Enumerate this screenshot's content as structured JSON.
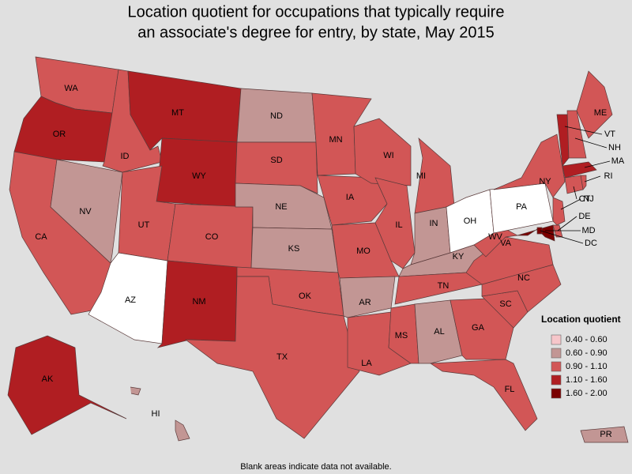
{
  "title": [
    "Location quotient for occupations that typically require",
    "an associate's degree for entry, by state, May 2015"
  ],
  "legend": {
    "title": "Location quotient",
    "items": [
      {
        "label": "0.40 - 0.60",
        "color": "#f6c6ca"
      },
      {
        "label": "0.60 - 0.90",
        "color": "#c29694"
      },
      {
        "label": "0.90 - 1.10",
        "color": "#d25656"
      },
      {
        "label": "1.10 - 1.60",
        "color": "#b01e22"
      },
      {
        "label": "1.60 - 2.00",
        "color": "#7a0000"
      }
    ]
  },
  "note": "Blank areas indicate data not available.",
  "states": [
    {
      "label": "WA",
      "color": "#d25656"
    },
    {
      "label": "OR",
      "color": "#b01e22"
    },
    {
      "label": "CA",
      "color": "#d25656"
    },
    {
      "label": "NV",
      "color": "#c29694"
    },
    {
      "label": "ID",
      "color": "#d25656"
    },
    {
      "label": "MT",
      "color": "#b01e22"
    },
    {
      "label": "WY",
      "color": "#b01e22"
    },
    {
      "label": "UT",
      "color": "#d25656"
    },
    {
      "label": "AZ",
      "color": null
    },
    {
      "label": "CO",
      "color": "#d25656"
    },
    {
      "label": "NM",
      "color": "#b01e22"
    },
    {
      "label": "ND",
      "color": "#c29694"
    },
    {
      "label": "SD",
      "color": "#d25656"
    },
    {
      "label": "NE",
      "color": "#c29694"
    },
    {
      "label": "KS",
      "color": "#c29694"
    },
    {
      "label": "OK",
      "color": "#d25656"
    },
    {
      "label": "TX",
      "color": "#d25656"
    },
    {
      "label": "MN",
      "color": "#d25656"
    },
    {
      "label": "IA",
      "color": "#d25656"
    },
    {
      "label": "MO",
      "color": "#d25656"
    },
    {
      "label": "AR",
      "color": "#c29694"
    },
    {
      "label": "LA",
      "color": "#d25656"
    },
    {
      "label": "WI",
      "color": "#d25656"
    },
    {
      "label": "IL",
      "color": "#d25656"
    },
    {
      "label": "MI",
      "color": "#d25656"
    },
    {
      "label": "IN",
      "color": "#c29694"
    },
    {
      "label": "OH",
      "color": null
    },
    {
      "label": "KY",
      "color": "#c29694"
    },
    {
      "label": "TN",
      "color": "#d25656"
    },
    {
      "label": "MS",
      "color": "#d25656"
    },
    {
      "label": "AL",
      "color": "#c29694"
    },
    {
      "label": "GA",
      "color": "#d25656"
    },
    {
      "label": "FL",
      "color": "#d25656"
    },
    {
      "label": "SC",
      "color": "#d25656"
    },
    {
      "label": "NC",
      "color": "#d25656"
    },
    {
      "label": "VA",
      "color": "#d25656"
    },
    {
      "label": "WV",
      "color": "#d25656"
    },
    {
      "label": "PA",
      "color": null
    },
    {
      "label": "NY",
      "color": "#d25656"
    },
    {
      "label": "VT",
      "color": "#b01e22"
    },
    {
      "label": "NH",
      "color": "#d25656"
    },
    {
      "label": "ME",
      "color": "#d25656"
    },
    {
      "label": "MA",
      "color": "#b01e22"
    },
    {
      "label": "RI",
      "color": "#d25656"
    },
    {
      "label": "CT",
      "color": "#d25656"
    },
    {
      "label": "NJ",
      "color": "#d25656"
    },
    {
      "label": "DE",
      "color": "#d25656"
    },
    {
      "label": "MD",
      "color": "#7a0000"
    },
    {
      "label": "DC",
      "color": "#7a0000"
    },
    {
      "label": "AK",
      "color": "#b01e22"
    },
    {
      "label": "HI",
      "color": "#c29694"
    },
    {
      "label": "PR",
      "color": "#c29694"
    }
  ]
}
